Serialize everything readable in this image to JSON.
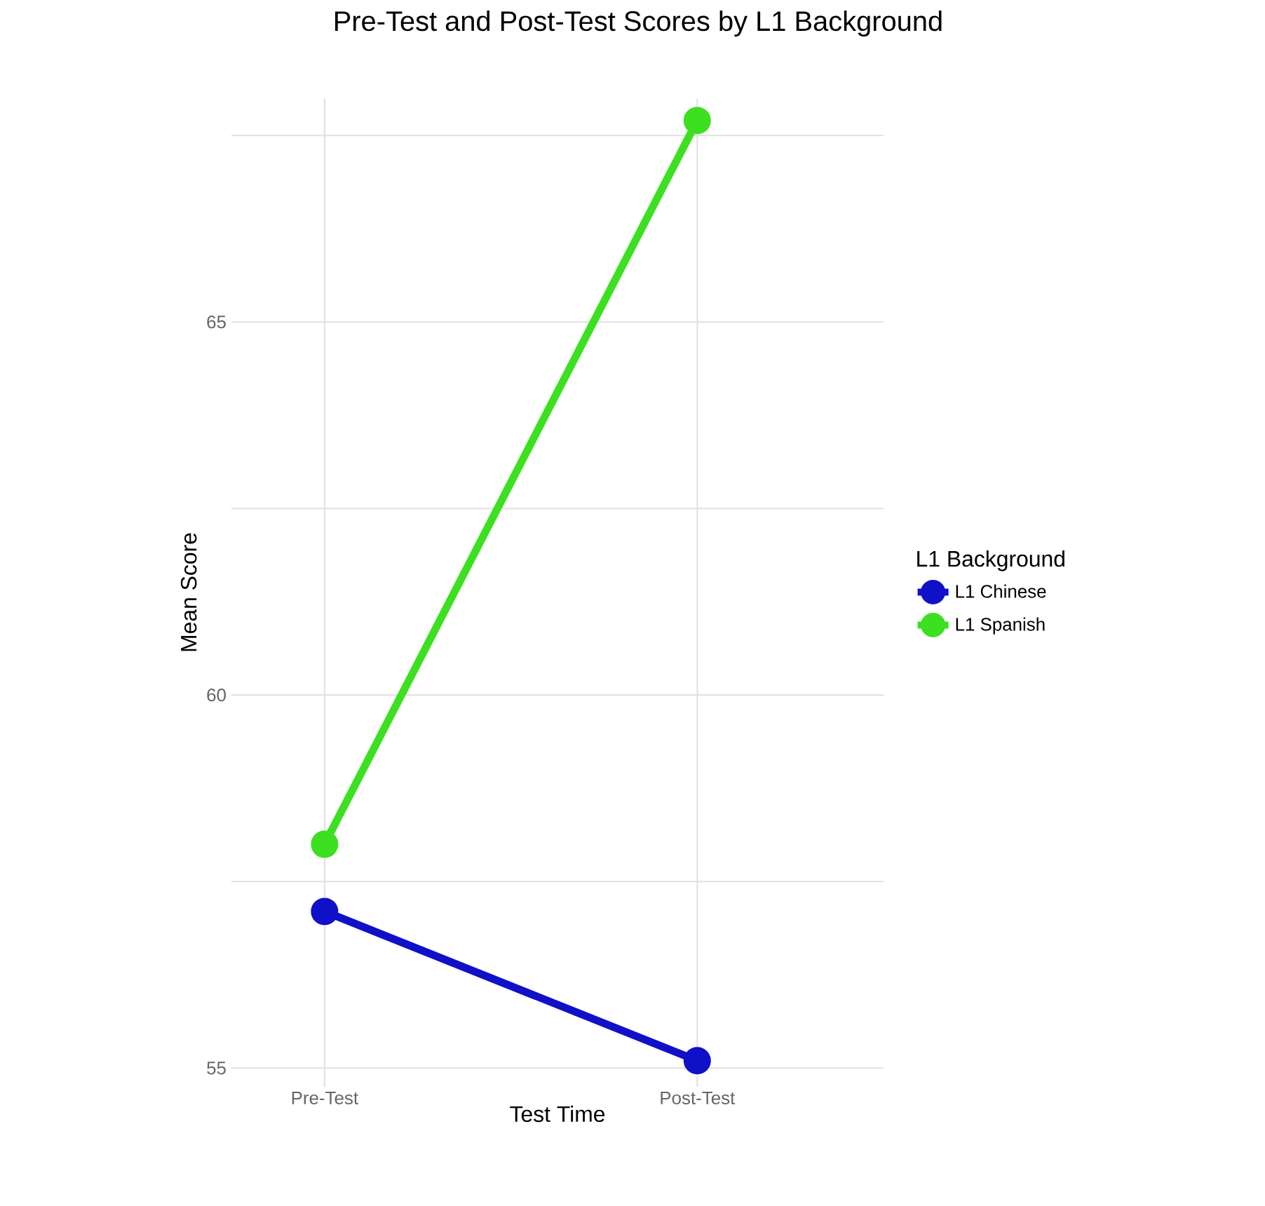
{
  "chart_data": {
    "type": "line",
    "title": "Pre-Test and Post-Test Scores by L1 Background",
    "xlabel": "Test Time",
    "ylabel": "Mean Score",
    "legend_title": "L1 Background",
    "categories": [
      "Pre-Test",
      "Post-Test"
    ],
    "series": [
      {
        "name": "L1 Chinese",
        "color": "#1010c8",
        "values": [
          57.1,
          55.1
        ]
      },
      {
        "name": "L1 Spanish",
        "color": "#3ce020",
        "values": [
          58.0,
          67.7
        ]
      }
    ],
    "ylim": [
      54.75,
      68
    ],
    "yticks": [
      {
        "value": 55,
        "label": "55"
      },
      {
        "value": 57.5,
        "label": null
      },
      {
        "value": 60,
        "label": "60"
      },
      {
        "value": 62.5,
        "label": null
      },
      {
        "value": 65,
        "label": "65"
      },
      {
        "value": 67.5,
        "label": null
      }
    ],
    "grid": true,
    "legend": "right",
    "marker": "circle",
    "line_style": "solid"
  }
}
